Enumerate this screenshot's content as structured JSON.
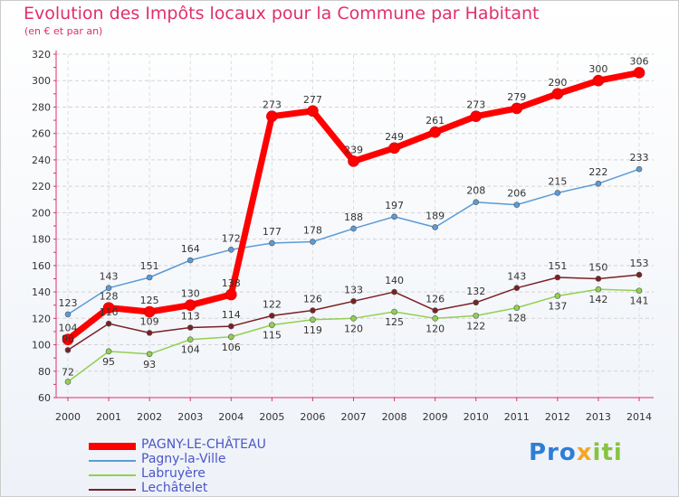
{
  "chart_data": {
    "type": "line",
    "title": "Evolution des Impôts locaux pour la Commune par Habitant",
    "subtitle": "(en € et par an)",
    "xlabel": "",
    "ylabel": "",
    "ylim": [
      60,
      320
    ],
    "y_ticks": [
      "60",
      "80",
      "100",
      "120",
      "140",
      "160",
      "180",
      "200",
      "220",
      "240",
      "260",
      "280",
      "300",
      "320"
    ],
    "categories": [
      "2000",
      "2001",
      "2002",
      "2003",
      "2004",
      "2005",
      "2006",
      "2007",
      "2008",
      "2009",
      "2010",
      "2011",
      "2012",
      "2013",
      "2014"
    ],
    "grid": true,
    "legend_position": "bottom-left",
    "series": [
      {
        "name": "PAGNY-LE-CHÂTEAU",
        "color": "#ff0000",
        "values": [
          104,
          128,
          125,
          130,
          138,
          273,
          277,
          239,
          249,
          261,
          273,
          279,
          290,
          300,
          306
        ]
      },
      {
        "name": "Pagny-la-Ville",
        "color": "#5b9bd5",
        "values": [
          123,
          143,
          151,
          164,
          172,
          177,
          178,
          188,
          197,
          189,
          208,
          206,
          215,
          222,
          233
        ]
      },
      {
        "name": "Labruyère",
        "color": "#92d050",
        "values": [
          72,
          95,
          93,
          104,
          106,
          115,
          119,
          120,
          125,
          120,
          122,
          128,
          137,
          142,
          141
        ]
      },
      {
        "name": "Lechâtelet",
        "color": "#7a2026",
        "values": [
          96,
          116,
          109,
          113,
          114,
          122,
          126,
          133,
          140,
          126,
          132,
          143,
          151,
          150,
          153
        ]
      }
    ]
  },
  "logo": {
    "part1": "Pro",
    "part2": "x",
    "part3": "iti"
  }
}
